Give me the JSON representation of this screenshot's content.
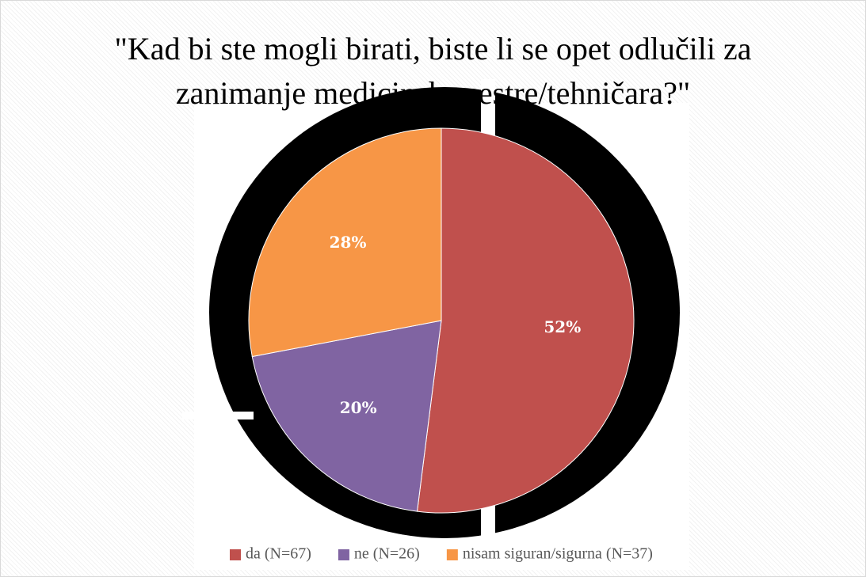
{
  "chart_data": {
    "type": "pie",
    "title": "\"Kad bi ste mogli birati, biste li se opet odlučili za zanimanje medicinske sestre/tehničara?\"",
    "categories": [
      "da (N=67)",
      "ne (N=26)",
      "nisam siguran/sigurna (N=37)"
    ],
    "values": [
      52,
      20,
      28
    ],
    "value_labels": [
      "52%",
      "20%",
      "28%"
    ],
    "colors": [
      "#c0504d",
      "#8064a2",
      "#f79646"
    ],
    "legend": "bottom"
  }
}
